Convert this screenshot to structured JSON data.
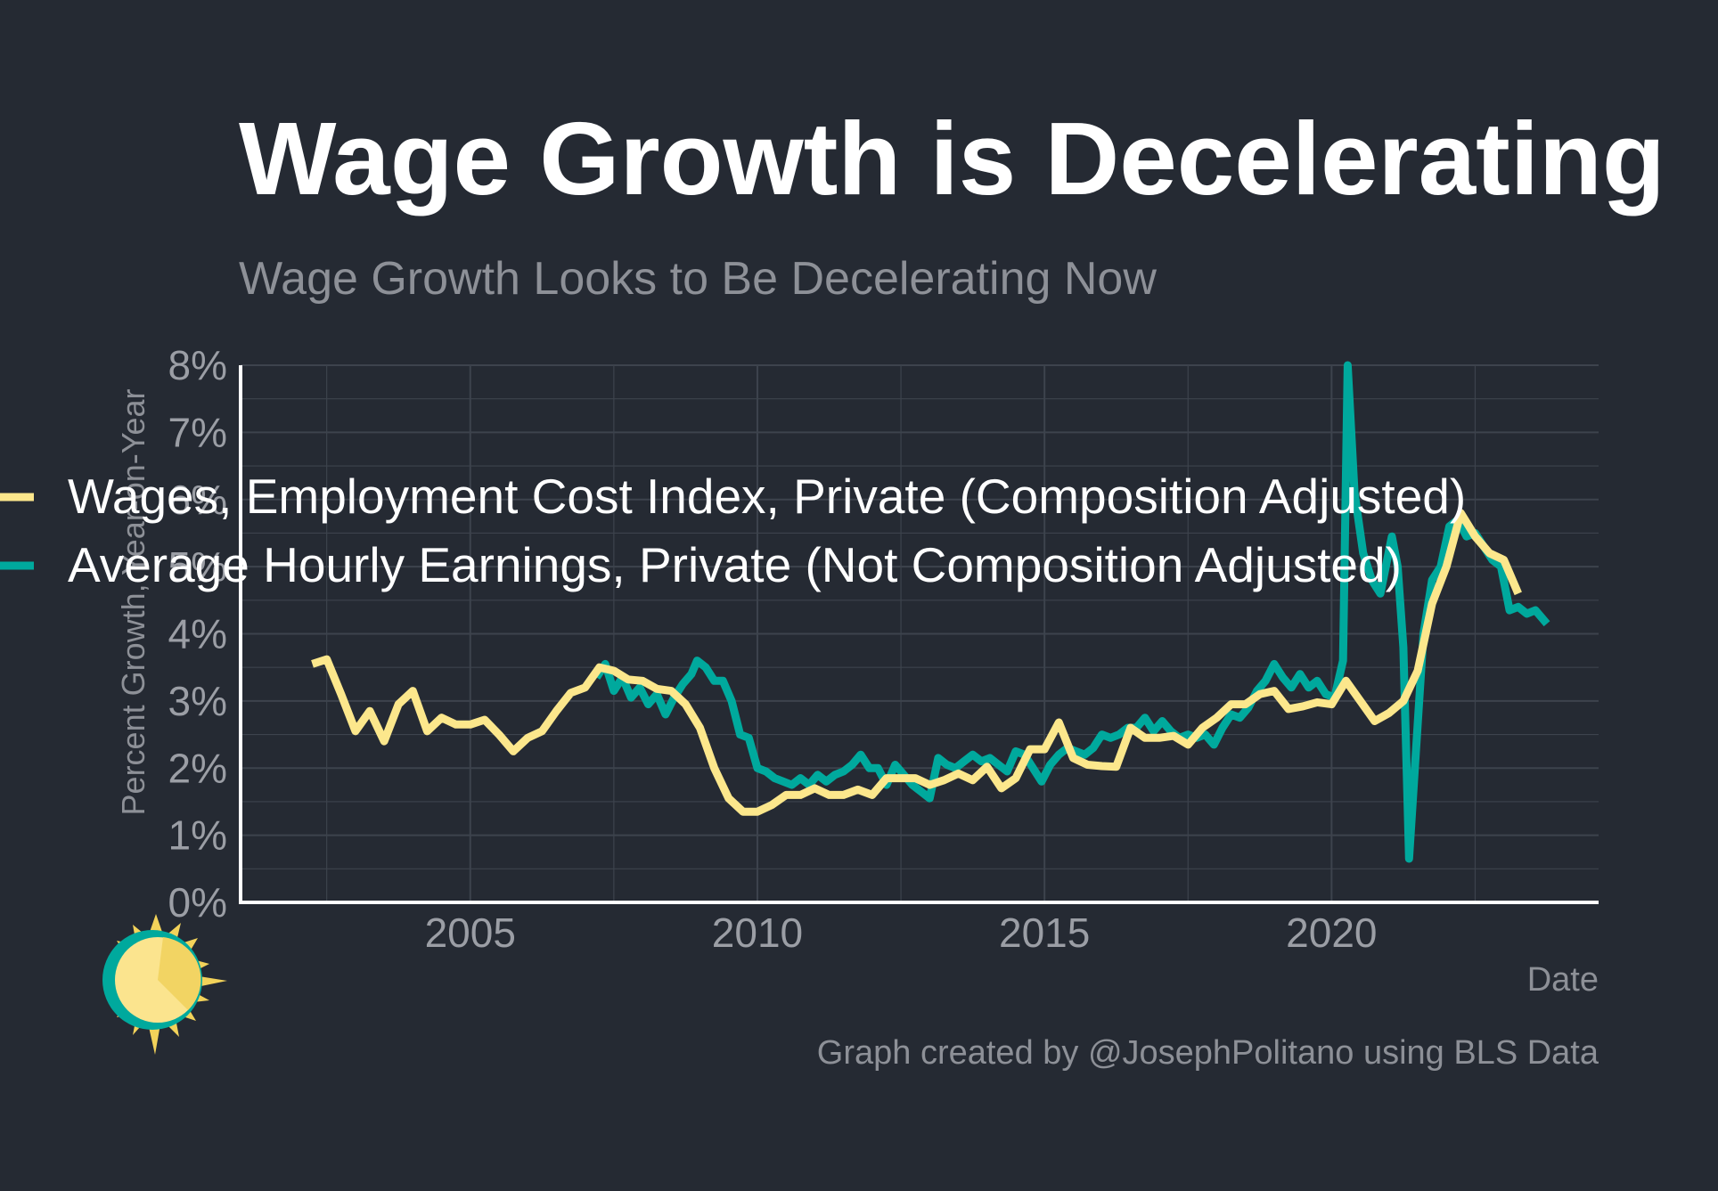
{
  "colors": {
    "background": "#252a33",
    "grid": "#3d434d",
    "axis": "#ffffff",
    "title": "#ffffff",
    "muted": "#9b9ea5",
    "ecs": "#fce78c",
    "ahe": "#00a99d"
  },
  "logo_icon": "sun-logo-icon",
  "chart_data": {
    "type": "line",
    "title": "Wage Growth is Decelerating",
    "subtitle": "Wage Growth Looks to Be Decelerating Now",
    "xlabel": "Date",
    "ylabel": "Percent Growth, Year-on-Year",
    "caption": "Graph created by @JosephPolitano using BLS Data",
    "xlim": [
      2001.0,
      2024.65
    ],
    "ylim": [
      0,
      8
    ],
    "x_ticks": [
      2005,
      2010,
      2015,
      2020
    ],
    "x_tick_labels": [
      "2005",
      "2010",
      "2015",
      "2020"
    ],
    "y_ticks": [
      0,
      1,
      2,
      3,
      4,
      5,
      6,
      7,
      8
    ],
    "y_tick_labels": [
      "0%",
      "1%",
      "2%",
      "3%",
      "4%",
      "5%",
      "6%",
      "7%",
      "8%"
    ],
    "grid": true,
    "legend_position": "top-left",
    "series": [
      {
        "name": "Wages, Employment Cost Index, Private (Composition Adjusted)",
        "color": "#fce78c",
        "points": [
          [
            2002.25,
            3.55
          ],
          [
            2002.5,
            3.62
          ],
          [
            2002.75,
            3.1
          ],
          [
            2003.0,
            2.55
          ],
          [
            2003.25,
            2.85
          ],
          [
            2003.5,
            2.4
          ],
          [
            2003.75,
            2.95
          ],
          [
            2004.0,
            3.15
          ],
          [
            2004.25,
            2.55
          ],
          [
            2004.5,
            2.75
          ],
          [
            2004.75,
            2.65
          ],
          [
            2005.0,
            2.65
          ],
          [
            2005.25,
            2.72
          ],
          [
            2005.5,
            2.5
          ],
          [
            2005.75,
            2.25
          ],
          [
            2006.0,
            2.45
          ],
          [
            2006.25,
            2.55
          ],
          [
            2006.5,
            2.85
          ],
          [
            2006.75,
            3.12
          ],
          [
            2007.0,
            3.2
          ],
          [
            2007.25,
            3.5
          ],
          [
            2007.5,
            3.45
          ],
          [
            2007.75,
            3.32
          ],
          [
            2008.0,
            3.3
          ],
          [
            2008.25,
            3.18
          ],
          [
            2008.5,
            3.15
          ],
          [
            2008.75,
            2.95
          ],
          [
            2009.0,
            2.6
          ],
          [
            2009.25,
            2.0
          ],
          [
            2009.5,
            1.55
          ],
          [
            2009.75,
            1.35
          ],
          [
            2010.0,
            1.35
          ],
          [
            2010.25,
            1.45
          ],
          [
            2010.5,
            1.6
          ],
          [
            2010.75,
            1.6
          ],
          [
            2011.0,
            1.7
          ],
          [
            2011.25,
            1.6
          ],
          [
            2011.5,
            1.6
          ],
          [
            2011.75,
            1.68
          ],
          [
            2012.0,
            1.6
          ],
          [
            2012.25,
            1.85
          ],
          [
            2012.5,
            1.85
          ],
          [
            2012.75,
            1.85
          ],
          [
            2013.0,
            1.75
          ],
          [
            2013.25,
            1.82
          ],
          [
            2013.5,
            1.92
          ],
          [
            2013.75,
            1.82
          ],
          [
            2014.0,
            2.02
          ],
          [
            2014.25,
            1.7
          ],
          [
            2014.5,
            1.85
          ],
          [
            2014.75,
            2.28
          ],
          [
            2015.0,
            2.28
          ],
          [
            2015.25,
            2.68
          ],
          [
            2015.5,
            2.15
          ],
          [
            2015.75,
            2.05
          ],
          [
            2016.0,
            2.03
          ],
          [
            2016.25,
            2.02
          ],
          [
            2016.5,
            2.6
          ],
          [
            2016.75,
            2.45
          ],
          [
            2017.0,
            2.45
          ],
          [
            2017.25,
            2.48
          ],
          [
            2017.5,
            2.35
          ],
          [
            2017.75,
            2.6
          ],
          [
            2018.0,
            2.75
          ],
          [
            2018.25,
            2.95
          ],
          [
            2018.5,
            2.95
          ],
          [
            2018.75,
            3.1
          ],
          [
            2019.0,
            3.15
          ],
          [
            2019.25,
            2.88
          ],
          [
            2019.5,
            2.92
          ],
          [
            2019.75,
            2.98
          ],
          [
            2020.0,
            2.95
          ],
          [
            2020.25,
            3.3
          ],
          [
            2020.5,
            3.0
          ],
          [
            2020.75,
            2.7
          ],
          [
            2021.0,
            2.82
          ],
          [
            2021.25,
            3.0
          ],
          [
            2021.5,
            3.45
          ],
          [
            2021.75,
            4.45
          ],
          [
            2022.0,
            5.0
          ],
          [
            2022.25,
            5.8
          ],
          [
            2022.5,
            5.45
          ],
          [
            2022.75,
            5.2
          ],
          [
            2023.0,
            5.1
          ],
          [
            2023.25,
            4.6
          ]
        ]
      },
      {
        "name": "Average Hourly Earnings, Private (Not Composition Adjusted)",
        "color": "#00a99d",
        "points": [
          [
            2007.2,
            3.35
          ],
          [
            2007.35,
            3.55
          ],
          [
            2007.5,
            3.15
          ],
          [
            2007.65,
            3.35
          ],
          [
            2007.8,
            3.05
          ],
          [
            2007.95,
            3.2
          ],
          [
            2008.1,
            2.95
          ],
          [
            2008.25,
            3.1
          ],
          [
            2008.4,
            2.8
          ],
          [
            2008.55,
            3.05
          ],
          [
            2008.7,
            3.25
          ],
          [
            2008.85,
            3.4
          ],
          [
            2008.95,
            3.6
          ],
          [
            2009.1,
            3.5
          ],
          [
            2009.25,
            3.3
          ],
          [
            2009.4,
            3.3
          ],
          [
            2009.55,
            3.0
          ],
          [
            2009.7,
            2.5
          ],
          [
            2009.85,
            2.45
          ],
          [
            2010.0,
            2.0
          ],
          [
            2010.15,
            1.95
          ],
          [
            2010.3,
            1.85
          ],
          [
            2010.45,
            1.8
          ],
          [
            2010.6,
            1.75
          ],
          [
            2010.75,
            1.85
          ],
          [
            2010.9,
            1.75
          ],
          [
            2011.05,
            1.9
          ],
          [
            2011.2,
            1.8
          ],
          [
            2011.35,
            1.9
          ],
          [
            2011.5,
            1.95
          ],
          [
            2011.65,
            2.05
          ],
          [
            2011.8,
            2.2
          ],
          [
            2011.95,
            2.0
          ],
          [
            2012.1,
            2.0
          ],
          [
            2012.25,
            1.75
          ],
          [
            2012.4,
            2.05
          ],
          [
            2012.55,
            1.9
          ],
          [
            2012.7,
            1.75
          ],
          [
            2012.85,
            1.65
          ],
          [
            2013.0,
            1.55
          ],
          [
            2013.15,
            2.15
          ],
          [
            2013.3,
            2.05
          ],
          [
            2013.45,
            2.0
          ],
          [
            2013.6,
            2.1
          ],
          [
            2013.75,
            2.2
          ],
          [
            2013.9,
            2.1
          ],
          [
            2014.05,
            2.15
          ],
          [
            2014.2,
            2.05
          ],
          [
            2014.35,
            1.95
          ],
          [
            2014.5,
            2.25
          ],
          [
            2014.65,
            2.2
          ],
          [
            2014.8,
            2.0
          ],
          [
            2014.95,
            1.8
          ],
          [
            2015.1,
            2.05
          ],
          [
            2015.25,
            2.2
          ],
          [
            2015.4,
            2.3
          ],
          [
            2015.55,
            2.25
          ],
          [
            2015.7,
            2.2
          ],
          [
            2015.85,
            2.3
          ],
          [
            2016.0,
            2.5
          ],
          [
            2016.15,
            2.45
          ],
          [
            2016.3,
            2.5
          ],
          [
            2016.45,
            2.6
          ],
          [
            2016.6,
            2.6
          ],
          [
            2016.75,
            2.75
          ],
          [
            2016.9,
            2.55
          ],
          [
            2017.05,
            2.7
          ],
          [
            2017.2,
            2.55
          ],
          [
            2017.35,
            2.45
          ],
          [
            2017.5,
            2.5
          ],
          [
            2017.65,
            2.45
          ],
          [
            2017.8,
            2.5
          ],
          [
            2017.95,
            2.35
          ],
          [
            2018.1,
            2.6
          ],
          [
            2018.25,
            2.8
          ],
          [
            2018.4,
            2.75
          ],
          [
            2018.55,
            2.9
          ],
          [
            2018.7,
            3.15
          ],
          [
            2018.85,
            3.3
          ],
          [
            2019.0,
            3.55
          ],
          [
            2019.15,
            3.35
          ],
          [
            2019.3,
            3.2
          ],
          [
            2019.45,
            3.4
          ],
          [
            2019.6,
            3.2
          ],
          [
            2019.75,
            3.3
          ],
          [
            2019.9,
            3.1
          ],
          [
            2020.05,
            3.05
          ],
          [
            2020.2,
            3.6
          ],
          [
            2020.28,
            8.0
          ],
          [
            2020.4,
            6.1
          ],
          [
            2020.55,
            5.2
          ],
          [
            2020.7,
            4.8
          ],
          [
            2020.85,
            4.6
          ],
          [
            2021.05,
            5.45
          ],
          [
            2021.15,
            5.0
          ],
          [
            2021.25,
            3.8
          ],
          [
            2021.35,
            0.65
          ],
          [
            2021.45,
            2.0
          ],
          [
            2021.6,
            4.0
          ],
          [
            2021.75,
            4.8
          ],
          [
            2021.9,
            5.0
          ],
          [
            2022.05,
            5.6
          ],
          [
            2022.2,
            5.7
          ],
          [
            2022.35,
            5.45
          ],
          [
            2022.5,
            5.5
          ],
          [
            2022.65,
            5.3
          ],
          [
            2022.8,
            5.1
          ],
          [
            2022.95,
            5.0
          ],
          [
            2023.1,
            4.35
          ],
          [
            2023.25,
            4.4
          ],
          [
            2023.4,
            4.3
          ],
          [
            2023.55,
            4.35
          ],
          [
            2023.75,
            4.15
          ]
        ]
      }
    ]
  }
}
